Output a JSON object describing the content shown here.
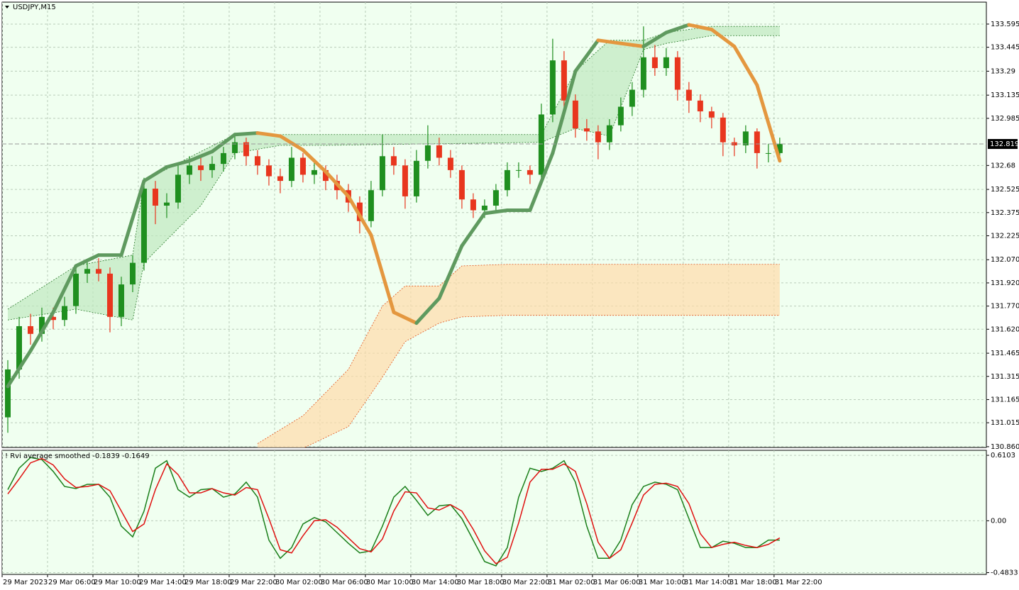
{
  "chart_data": [
    {
      "type": "candlestick",
      "title": "USDJPY,M15",
      "xlim": [
        -0.5,
        86.2
      ],
      "xticks": [
        {
          "value": 0,
          "label": "29 Mar 2023"
        },
        {
          "value": 4,
          "label": "29 Mar 06:00"
        },
        {
          "value": 8,
          "label": "29 Mar 10:00"
        },
        {
          "value": 12,
          "label": "29 Mar 14:00"
        },
        {
          "value": 16,
          "label": "29 Mar 18:00"
        },
        {
          "value": 20,
          "label": "29 Mar 22:00"
        },
        {
          "value": 24,
          "label": "30 Mar 02:00"
        },
        {
          "value": 28,
          "label": "30 Mar 06:00"
        },
        {
          "value": 32,
          "label": "30 Mar 10:00"
        },
        {
          "value": 36,
          "label": "30 Mar 14:00"
        },
        {
          "value": 40,
          "label": "30 Mar 18:00"
        },
        {
          "value": 44,
          "label": "30 Mar 22:00"
        },
        {
          "value": 48,
          "label": "31 Mar 02:00"
        },
        {
          "value": 52,
          "label": "31 Mar 06:00"
        },
        {
          "value": 56,
          "label": "31 Mar 10:00"
        },
        {
          "value": 60,
          "label": "31 Mar 14:00"
        },
        {
          "value": 64,
          "label": "31 Mar 18:00"
        },
        {
          "value": 68,
          "label": "31 Mar 22:00"
        }
      ],
      "ylim": [
        130.855,
        133.737
      ],
      "yticks": [
        133.595,
        133.445,
        133.29,
        {
          "value": 133.135,
          "label": "133.135"
        },
        132.985,
        132.68,
        132.525,
        132.375,
        132.225,
        {
          "value": 132.07,
          "label": "132.070"
        },
        {
          "value": 131.92,
          "label": "131.920"
        },
        {
          "value": 131.77,
          "label": "131.770"
        },
        {
          "value": 131.62,
          "label": "131.620"
        },
        131.465,
        131.315,
        131.165,
        131.015,
        {
          "value": 130.86,
          "label": "130.860"
        }
      ],
      "grid": true,
      "up_color": "#1f8f1f",
      "down_color": "#e8361e",
      "candles": [
        [
          131.05,
          131.42,
          130.95,
          131.36
        ],
        [
          131.36,
          131.7,
          131.3,
          131.64
        ],
        [
          131.64,
          131.72,
          131.52,
          131.59
        ],
        [
          131.59,
          131.76,
          131.54,
          131.7
        ],
        [
          131.7,
          131.76,
          131.62,
          131.68
        ],
        [
          131.68,
          131.83,
          131.64,
          131.77
        ],
        [
          131.77,
          132.04,
          131.72,
          131.98
        ],
        [
          131.98,
          132.07,
          131.92,
          132.01
        ],
        [
          132.01,
          132.08,
          131.93,
          131.98
        ],
        [
          131.98,
          132.02,
          131.6,
          131.7
        ],
        [
          131.7,
          131.96,
          131.64,
          131.91
        ],
        [
          131.91,
          132.1,
          131.86,
          132.05
        ],
        [
          132.05,
          132.6,
          132.0,
          132.53
        ],
        [
          132.53,
          132.58,
          132.3,
          132.42
        ],
        [
          132.42,
          132.5,
          132.34,
          132.44
        ],
        [
          132.44,
          132.68,
          132.4,
          132.62
        ],
        [
          132.62,
          132.74,
          132.56,
          132.68
        ],
        [
          132.68,
          132.73,
          132.58,
          132.65
        ],
        [
          132.65,
          132.74,
          132.6,
          132.69
        ],
        [
          132.69,
          132.8,
          132.64,
          132.76
        ],
        [
          132.76,
          132.88,
          132.72,
          132.83
        ],
        [
          132.83,
          132.86,
          132.68,
          132.74
        ],
        [
          132.74,
          132.78,
          132.62,
          132.68
        ],
        [
          132.68,
          132.72,
          132.55,
          132.61
        ],
        [
          132.61,
          132.66,
          132.5,
          132.58
        ],
        [
          132.58,
          132.8,
          132.54,
          132.73
        ],
        [
          132.73,
          132.76,
          132.57,
          132.62
        ],
        [
          132.62,
          132.7,
          132.56,
          132.65
        ],
        [
          132.65,
          132.68,
          132.52,
          132.58
        ],
        [
          132.58,
          132.62,
          132.46,
          132.52
        ],
        [
          132.52,
          132.56,
          132.38,
          132.44
        ],
        [
          132.44,
          132.48,
          132.24,
          132.32
        ],
        [
          132.32,
          132.58,
          132.28,
          132.52
        ],
        [
          132.52,
          132.88,
          132.48,
          132.74
        ],
        [
          132.74,
          132.8,
          132.62,
          132.68
        ],
        [
          132.68,
          132.72,
          132.4,
          132.48
        ],
        [
          132.48,
          132.78,
          132.44,
          132.71
        ],
        [
          132.71,
          132.94,
          132.66,
          132.81
        ],
        [
          132.81,
          132.86,
          132.68,
          132.73
        ],
        [
          132.73,
          132.78,
          132.6,
          132.65
        ],
        [
          132.65,
          132.68,
          132.4,
          132.46
        ],
        [
          132.46,
          132.5,
          132.34,
          132.39
        ],
        [
          132.39,
          132.46,
          132.34,
          132.42
        ],
        [
          132.42,
          132.56,
          132.38,
          132.52
        ],
        [
          132.52,
          132.7,
          132.48,
          132.65
        ],
        [
          132.65,
          132.7,
          132.6,
          132.65
        ],
        [
          132.65,
          132.68,
          132.56,
          132.62
        ],
        [
          132.62,
          133.08,
          132.58,
          133.01
        ],
        [
          133.01,
          133.5,
          132.96,
          133.36
        ],
        [
          133.36,
          133.42,
          133.04,
          133.1
        ],
        [
          133.1,
          133.14,
          132.86,
          132.92
        ],
        [
          132.92,
          132.98,
          132.84,
          132.9
        ],
        [
          132.9,
          132.94,
          132.72,
          132.83
        ],
        [
          132.83,
          132.98,
          132.78,
          132.94
        ],
        [
          132.94,
          133.12,
          132.9,
          133.06
        ],
        [
          133.06,
          133.22,
          133.0,
          133.17
        ],
        [
          133.17,
          133.58,
          133.12,
          133.38
        ],
        [
          133.38,
          133.46,
          133.26,
          133.31
        ],
        [
          133.31,
          133.44,
          133.26,
          133.38
        ],
        [
          133.38,
          133.42,
          133.1,
          133.17
        ],
        [
          133.17,
          133.22,
          133.02,
          133.1
        ],
        [
          133.1,
          133.14,
          132.96,
          133.03
        ],
        [
          133.03,
          133.06,
          132.92,
          132.99
        ],
        [
          132.99,
          133.02,
          132.74,
          132.83
        ],
        [
          132.83,
          132.86,
          132.74,
          132.81
        ],
        [
          132.81,
          132.94,
          132.76,
          132.9
        ],
        [
          132.9,
          132.92,
          132.66,
          132.76
        ],
        [
          132.76,
          132.82,
          132.7,
          132.76
        ],
        [
          132.76,
          132.86,
          132.74,
          132.82
        ]
      ],
      "last_price": 132.819,
      "smooth": {
        "x": [
          0,
          2,
          4,
          6,
          8,
          10,
          12,
          14,
          16,
          18,
          20,
          22,
          24,
          26,
          28,
          30,
          32,
          34,
          36,
          38,
          40,
          42,
          44,
          46,
          48,
          50,
          52,
          54,
          56,
          58,
          60,
          62,
          64,
          66,
          68
        ],
        "values": [
          131.25,
          131.48,
          131.73,
          132.03,
          132.1,
          132.1,
          132.58,
          132.67,
          132.71,
          132.77,
          132.88,
          132.89,
          132.87,
          132.78,
          132.64,
          132.48,
          132.23,
          131.73,
          131.66,
          131.82,
          132.16,
          132.37,
          132.39,
          132.39,
          132.76,
          133.29,
          133.49,
          133.47,
          133.45,
          133.54,
          133.59,
          133.56,
          133.45,
          133.2,
          132.71
        ],
        "up_color": "#5f9a5f",
        "down_color": "#e4973f"
      },
      "bands": [
        {
          "color": "#bfe8bf",
          "x": [
            0,
            6,
            11,
            12,
            17,
            20,
            24,
            28,
            47,
            50,
            53,
            56,
            58,
            62,
            68
          ],
          "upper": [
            131.75,
            132.03,
            132.1,
            132.58,
            132.77,
            132.88,
            132.88,
            132.88,
            132.88,
            133.29,
            133.49,
            133.49,
            133.54,
            133.58,
            133.58
          ],
          "lower": [
            131.68,
            131.75,
            131.68,
            132.05,
            132.42,
            132.76,
            132.81,
            132.81,
            132.83,
            132.92,
            132.87,
            133.43,
            133.47,
            133.52,
            133.52
          ]
        },
        {
          "color": "#ffdcaa",
          "x": [
            22,
            26,
            30,
            33,
            35,
            38,
            40,
            44,
            68
          ],
          "upper": [
            130.88,
            131.06,
            131.36,
            131.77,
            131.9,
            131.9,
            132.03,
            132.04,
            132.04
          ],
          "lower": [
            130.8,
            130.85,
            130.99,
            131.31,
            131.54,
            131.66,
            131.7,
            131.71,
            131.71
          ]
        }
      ]
    },
    {
      "type": "line",
      "title": "! Rvi average smoothed -0.1839 -0.1649",
      "ylim": [
        -0.5,
        0.657
      ],
      "yticks": [
        0.6103,
        {
          "value": 0,
          "label": "0.00"
        },
        -0.4833
      ],
      "grid": true,
      "series": [
        {
          "color": "#1a7f1a",
          "values": [
            0.29,
            0.49,
            0.59,
            0.57,
            0.46,
            0.32,
            0.3,
            0.34,
            0.34,
            0.22,
            -0.05,
            -0.15,
            0.09,
            0.49,
            0.56,
            0.29,
            0.22,
            0.29,
            0.3,
            0.22,
            0.25,
            0.36,
            0.22,
            -0.18,
            -0.35,
            -0.25,
            -0.03,
            0.03,
            -0.01,
            -0.11,
            -0.21,
            -0.3,
            -0.28,
            -0.05,
            0.22,
            0.32,
            0.19,
            0.05,
            0.14,
            0.15,
            0.02,
            -0.18,
            -0.38,
            -0.42,
            -0.25,
            0.22,
            0.49,
            0.46,
            0.49,
            0.56,
            0.36,
            -0.05,
            -0.35,
            -0.35,
            -0.18,
            0.15,
            0.32,
            0.36,
            0.34,
            0.29,
            0.02,
            -0.25,
            -0.25,
            -0.19,
            -0.21,
            -0.25,
            -0.25,
            -0.18,
            -0.18
          ]
        },
        {
          "color": "#e01010",
          "values": [
            0.25,
            0.39,
            0.54,
            0.58,
            0.52,
            0.39,
            0.31,
            0.32,
            0.34,
            0.28,
            0.09,
            -0.1,
            -0.03,
            0.29,
            0.53,
            0.43,
            0.26,
            0.26,
            0.3,
            0.26,
            0.24,
            0.31,
            0.29,
            0.02,
            -0.27,
            -0.3,
            -0.14,
            0.0,
            0.01,
            -0.06,
            -0.16,
            -0.26,
            -0.29,
            -0.17,
            0.09,
            0.27,
            0.26,
            0.12,
            0.1,
            0.15,
            0.09,
            -0.08,
            -0.28,
            -0.4,
            -0.34,
            -0.02,
            0.36,
            0.48,
            0.48,
            0.53,
            0.46,
            0.16,
            -0.2,
            -0.35,
            -0.27,
            -0.02,
            0.24,
            0.34,
            0.35,
            0.32,
            0.16,
            -0.12,
            -0.25,
            -0.22,
            -0.2,
            -0.23,
            -0.25,
            -0.22,
            -0.16
          ]
        }
      ]
    }
  ]
}
